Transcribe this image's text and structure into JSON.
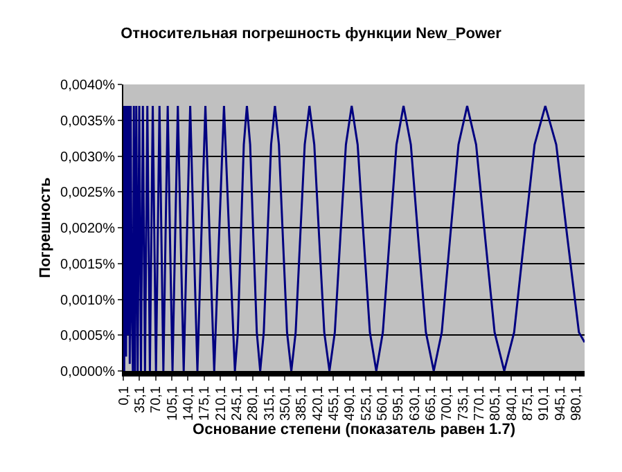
{
  "chart_data": {
    "type": "line",
    "title": "Относительная погрешность функции New_Power",
    "xlabel": "Основание степени (показатель равен 1.7)",
    "ylabel": "Погрешность",
    "x": [
      0.1,
      2.1,
      4.1,
      6.1,
      8.1,
      10.1,
      12.1,
      14.1,
      16.1,
      18.1,
      20.8,
      23.0,
      25.5,
      28.2,
      31.3,
      34.7,
      38.4,
      42.5,
      47.1,
      52.2,
      57.7,
      63.9,
      70.9,
      78.5,
      86.9,
      91.5,
      96.3,
      101.3,
      106.7,
      112.3,
      118.2,
      124.4,
      130.9,
      137.8,
      145.0,
      152.6,
      160.6,
      169.0,
      177.9,
      187.2,
      197.0,
      207.3,
      218.2,
      229.7,
      241.8,
      248.1,
      254.5,
      261.1,
      267.8,
      274.8,
      281.9,
      289.2,
      296.6,
      304.3,
      312.2,
      320.2,
      328.5,
      337.1,
      345.8,
      354.7,
      364.0,
      373.4,
      383.1,
      393.0,
      403.2,
      413.7,
      424.4,
      435.3,
      446.6,
      458.2,
      470.0,
      482.2,
      494.7,
      507.6,
      520.7,
      534.1,
      548.0,
      562.2,
      576.8,
      591.7,
      607.0,
      622.8,
      638.9,
      655.4,
      672.4,
      689.8,
      707.7,
      726.0,
      744.8,
      764.2,
      783.9,
      804.2,
      825.1,
      846.5,
      868.4,
      890.8,
      914.0,
      937.7,
      962.0,
      986.8,
      999.1
    ],
    "series": [
      {
        "color": "#000080",
        "values": [
          0.0037,
          0,
          0.0037,
          0.0002,
          0.0037,
          0.0005,
          0.0037,
          0.0001,
          0.0037,
          0.001,
          0,
          0.0037,
          0,
          0.0037,
          0,
          0.0037,
          0,
          0.0037,
          0,
          0.0037,
          0,
          0.0037,
          0,
          0.0037,
          0,
          0.00185,
          0.0037,
          0.00185,
          0,
          0.00185,
          0.0037,
          0.00185,
          0,
          0.00185,
          0.0037,
          0.00185,
          0,
          0.00185,
          0.0037,
          0.00185,
          0,
          0.00185,
          0.0037,
          0.00185,
          0,
          0.00054,
          0.00185,
          0.00316,
          0.0037,
          0.00316,
          0.00185,
          0.00054,
          0,
          0.00054,
          0.00185,
          0.00316,
          0.0037,
          0.00316,
          0.00185,
          0.00054,
          0,
          0.00054,
          0.00185,
          0.00316,
          0.0037,
          0.00316,
          0.00185,
          0.00054,
          0,
          0.00054,
          0.00185,
          0.00316,
          0.0037,
          0.00316,
          0.00185,
          0.00054,
          0,
          0.00054,
          0.00185,
          0.00316,
          0.0037,
          0.00316,
          0.00185,
          0.00054,
          0,
          0.00054,
          0.00185,
          0.00316,
          0.0037,
          0.00316,
          0.00185,
          0.00054,
          0,
          0.00054,
          0.00185,
          0.00316,
          0.0037,
          0.00316,
          0.00185,
          0.00054,
          0.0004
        ]
      }
    ],
    "xlim": [
      0.1,
      999.1
    ],
    "xticks": [
      {
        "value": 0.1,
        "label": "0,1"
      },
      {
        "value": 35.1,
        "label": "35,1"
      },
      {
        "value": 70.1,
        "label": "70,1"
      },
      {
        "value": 105.1,
        "label": "105,1"
      },
      {
        "value": 140.1,
        "label": "140,1"
      },
      {
        "value": 175.1,
        "label": "175,1"
      },
      {
        "value": 210.1,
        "label": "210,1"
      },
      {
        "value": 245.1,
        "label": "245,1"
      },
      {
        "value": 280.1,
        "label": "280,1"
      },
      {
        "value": 315.1,
        "label": "315,1"
      },
      {
        "value": 350.1,
        "label": "350,1"
      },
      {
        "value": 385.1,
        "label": "385,1"
      },
      {
        "value": 420.1,
        "label": "420,1"
      },
      {
        "value": 455.1,
        "label": "455,1"
      },
      {
        "value": 490.1,
        "label": "490,1"
      },
      {
        "value": 525.1,
        "label": "525,1"
      },
      {
        "value": 560.1,
        "label": "560,1"
      },
      {
        "value": 595.1,
        "label": "595,1"
      },
      {
        "value": 630.1,
        "label": "630,1"
      },
      {
        "value": 665.1,
        "label": "665,1"
      },
      {
        "value": 700.1,
        "label": "700,1"
      },
      {
        "value": 735.1,
        "label": "735,1"
      },
      {
        "value": 770.1,
        "label": "770,1"
      },
      {
        "value": 805.1,
        "label": "805,1"
      },
      {
        "value": 840.1,
        "label": "840,1"
      },
      {
        "value": 875.1,
        "label": "875,1"
      },
      {
        "value": 910.1,
        "label": "910,1"
      },
      {
        "value": 945.1,
        "label": "945,1"
      },
      {
        "value": 980.1,
        "label": "980,1"
      }
    ],
    "ylim": [
      0,
      0.004
    ],
    "yticks": [
      {
        "value": 0,
        "label": "0,0000%"
      },
      {
        "value": 0.0005,
        "label": "0,0005%"
      },
      {
        "value": 0.001,
        "label": "0,0010%"
      },
      {
        "value": 0.0015,
        "label": "0,0015%"
      },
      {
        "value": 0.002,
        "label": "0,0020%"
      },
      {
        "value": 0.0025,
        "label": "0,0025%"
      },
      {
        "value": 0.003,
        "label": "0,0030%"
      },
      {
        "value": 0.0035,
        "label": "0,0035%"
      },
      {
        "value": 0.004,
        "label": "0,0040%"
      }
    ],
    "grid": "y",
    "marker": "none",
    "line_style": "solid"
  }
}
